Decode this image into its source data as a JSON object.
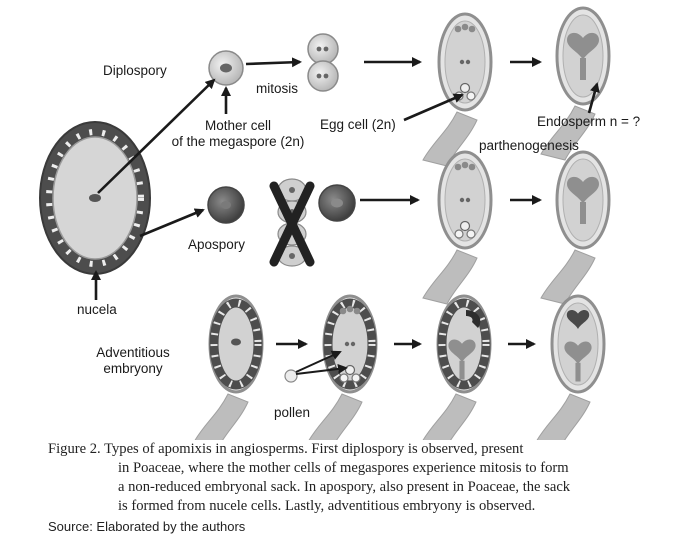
{
  "labels": {
    "diplospory": "Diplospory",
    "mitosis": "mitosis",
    "mother_cell_line1": "Mother cell",
    "mother_cell_line2": "of the megaspore (2n)",
    "egg_cell": "Egg cell (2n)",
    "endosperm": "Endosperm n = ?",
    "parthenogenesis": "parthenogenesis",
    "apospory": "Apospory",
    "nucela": "nucela",
    "adventitious_line1": "Adventitious",
    "adventitious_line2": "embryony",
    "pollen": "pollen"
  },
  "caption": {
    "line1": "Figure 2. Types of apomixis in angiosperms. First diplospory is observed, present",
    "line2": "in Poaceae, where the mother cells of megaspores experience mitosis to form",
    "line3": "a non-reduced embryonal sack. In apospory, also present in Poaceae, the sack",
    "line4": "is formed from nucele cells. Lastly, adventitious embryony is observed."
  },
  "source": "Source: Elaborated by the authors",
  "colors": {
    "sac_outline": "#8a8a8a",
    "sac_fill": "#d4d4d4",
    "stalk": "#b9b9b9",
    "nucellus_band": "#4d4d4d",
    "cell_dark": "#5a5a5a",
    "arrow": "#1a1a1a"
  }
}
